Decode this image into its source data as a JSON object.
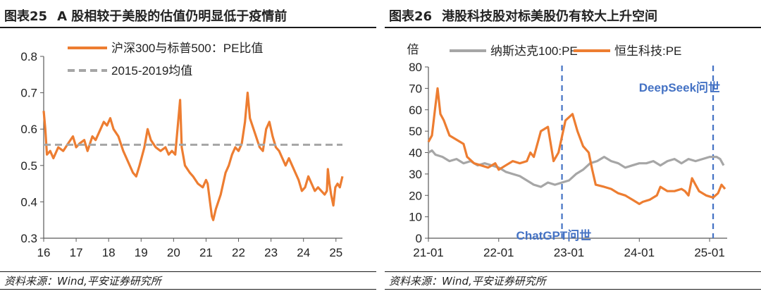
{
  "figures": [
    {
      "label": "图表25",
      "title": "A 股相较于美股的估值仍明显低于疫情前",
      "source": "资料来源：Wind,平安证券研究所"
    },
    {
      "label": "图表26",
      "title": "港股科技股对标美股仍有较大上升空间",
      "source": "资料来源：Wind,平安证券研究所"
    }
  ],
  "chart_data": [
    {
      "type": "line",
      "xlabel": "",
      "ylabel": "",
      "xlim": [
        2016.0,
        2025.2
      ],
      "ylim": [
        0.3,
        0.8
      ],
      "yticks": [
        "0.3",
        "0.4",
        "0.5",
        "0.6",
        "0.7",
        "0.8"
      ],
      "xticks": [
        {
          "label": "16",
          "x": 2016
        },
        {
          "label": "17",
          "x": 2017
        },
        {
          "label": "18",
          "x": 2018
        },
        {
          "label": "19",
          "x": 2019
        },
        {
          "label": "20",
          "x": 2020
        },
        {
          "label": "21",
          "x": 2021
        },
        {
          "label": "22",
          "x": 2022
        },
        {
          "label": "23",
          "x": 2023
        },
        {
          "label": "24",
          "x": 2024
        },
        {
          "label": "25",
          "x": 2025
        }
      ],
      "legend_position": "top-left",
      "series": [
        {
          "name": "沪深300与标普500：PE比值",
          "color": "#ED7D31",
          "style": "solid",
          "points": [
            [
              2016.0,
              0.65
            ],
            [
              2016.05,
              0.6
            ],
            [
              2016.1,
              0.53
            ],
            [
              2016.2,
              0.54
            ],
            [
              2016.3,
              0.52
            ],
            [
              2016.45,
              0.55
            ],
            [
              2016.6,
              0.54
            ],
            [
              2016.75,
              0.56
            ],
            [
              2016.9,
              0.58
            ],
            [
              2017.0,
              0.55
            ],
            [
              2017.1,
              0.56
            ],
            [
              2017.25,
              0.57
            ],
            [
              2017.35,
              0.54
            ],
            [
              2017.5,
              0.58
            ],
            [
              2017.6,
              0.57
            ],
            [
              2017.75,
              0.6
            ],
            [
              2017.85,
              0.62
            ],
            [
              2017.95,
              0.61
            ],
            [
              2018.05,
              0.63
            ],
            [
              2018.15,
              0.6
            ],
            [
              2018.3,
              0.58
            ],
            [
              2018.45,
              0.54
            ],
            [
              2018.6,
              0.51
            ],
            [
              2018.75,
              0.48
            ],
            [
              2018.85,
              0.47
            ],
            [
              2018.95,
              0.5
            ],
            [
              2019.1,
              0.55
            ],
            [
              2019.2,
              0.6
            ],
            [
              2019.3,
              0.57
            ],
            [
              2019.45,
              0.55
            ],
            [
              2019.6,
              0.54
            ],
            [
              2019.75,
              0.55
            ],
            [
              2019.85,
              0.53
            ],
            [
              2019.95,
              0.54
            ],
            [
              2020.05,
              0.53
            ],
            [
              2020.15,
              0.63
            ],
            [
              2020.2,
              0.68
            ],
            [
              2020.25,
              0.55
            ],
            [
              2020.35,
              0.5
            ],
            [
              2020.5,
              0.48
            ],
            [
              2020.6,
              0.47
            ],
            [
              2020.75,
              0.45
            ],
            [
              2020.9,
              0.44
            ],
            [
              2021.0,
              0.46
            ],
            [
              2021.05,
              0.45
            ],
            [
              2021.12,
              0.4
            ],
            [
              2021.18,
              0.36
            ],
            [
              2021.22,
              0.35
            ],
            [
              2021.3,
              0.38
            ],
            [
              2021.45,
              0.42
            ],
            [
              2021.6,
              0.48
            ],
            [
              2021.7,
              0.5
            ],
            [
              2021.8,
              0.53
            ],
            [
              2021.9,
              0.55
            ],
            [
              2022.0,
              0.54
            ],
            [
              2022.1,
              0.56
            ],
            [
              2022.2,
              0.62
            ],
            [
              2022.28,
              0.7
            ],
            [
              2022.35,
              0.63
            ],
            [
              2022.5,
              0.59
            ],
            [
              2022.65,
              0.55
            ],
            [
              2022.75,
              0.54
            ],
            [
              2022.85,
              0.6
            ],
            [
              2022.95,
              0.62
            ],
            [
              2023.05,
              0.58
            ],
            [
              2023.15,
              0.55
            ],
            [
              2023.25,
              0.54
            ],
            [
              2023.35,
              0.52
            ],
            [
              2023.45,
              0.5
            ],
            [
              2023.55,
              0.52
            ],
            [
              2023.65,
              0.5
            ],
            [
              2023.75,
              0.48
            ],
            [
              2023.85,
              0.46
            ],
            [
              2023.95,
              0.43
            ],
            [
              2024.05,
              0.44
            ],
            [
              2024.15,
              0.47
            ],
            [
              2024.25,
              0.45
            ],
            [
              2024.35,
              0.43
            ],
            [
              2024.45,
              0.44
            ],
            [
              2024.55,
              0.43
            ],
            [
              2024.65,
              0.42
            ],
            [
              2024.72,
              0.43
            ],
            [
              2024.75,
              0.49
            ],
            [
              2024.8,
              0.45
            ],
            [
              2024.85,
              0.42
            ],
            [
              2024.92,
              0.39
            ],
            [
              2024.98,
              0.44
            ],
            [
              2025.05,
              0.45
            ],
            [
              2025.12,
              0.44
            ],
            [
              2025.2,
              0.47
            ]
          ]
        },
        {
          "name": "2015-2019均值",
          "color": "#A6A6A6",
          "style": "dashed",
          "points": [
            [
              2016.0,
              0.557
            ],
            [
              2025.2,
              0.557
            ]
          ]
        }
      ]
    },
    {
      "type": "line",
      "xlabel": "",
      "ylabel": "倍",
      "xlim": [
        2021.0,
        2025.25
      ],
      "ylim": [
        0,
        80
      ],
      "yticks": [
        "0",
        "10",
        "20",
        "30",
        "40",
        "50",
        "60",
        "70",
        "80"
      ],
      "xticks": [
        {
          "label": "21-01",
          "x": 2021.0
        },
        {
          "label": "22-01",
          "x": 2022.0
        },
        {
          "label": "23-01",
          "x": 2023.0
        },
        {
          "label": "24-01",
          "x": 2024.0
        },
        {
          "label": "25-01",
          "x": 2025.0
        }
      ],
      "legend_position": "top",
      "series": [
        {
          "name": "纳斯达克100:PE",
          "color": "#A6A6A6",
          "style": "solid",
          "points": [
            [
              2021.0,
              40
            ],
            [
              2021.05,
              41
            ],
            [
              2021.1,
              39
            ],
            [
              2021.2,
              38
            ],
            [
              2021.3,
              36
            ],
            [
              2021.4,
              37
            ],
            [
              2021.5,
              35
            ],
            [
              2021.6,
              36
            ],
            [
              2021.7,
              34
            ],
            [
              2021.8,
              35
            ],
            [
              2021.9,
              34
            ],
            [
              2022.0,
              33
            ],
            [
              2022.1,
              31
            ],
            [
              2022.2,
              30
            ],
            [
              2022.3,
              29
            ],
            [
              2022.4,
              27
            ],
            [
              2022.5,
              25
            ],
            [
              2022.6,
              24
            ],
            [
              2022.7,
              26
            ],
            [
              2022.8,
              25
            ],
            [
              2022.9,
              26
            ],
            [
              2023.0,
              27
            ],
            [
              2023.1,
              30
            ],
            [
              2023.2,
              32
            ],
            [
              2023.3,
              35
            ],
            [
              2023.4,
              36
            ],
            [
              2023.5,
              38
            ],
            [
              2023.6,
              36
            ],
            [
              2023.7,
              35
            ],
            [
              2023.8,
              33
            ],
            [
              2023.9,
              34
            ],
            [
              2024.0,
              35
            ],
            [
              2024.1,
              35
            ],
            [
              2024.2,
              36
            ],
            [
              2024.3,
              34
            ],
            [
              2024.4,
              36
            ],
            [
              2024.5,
              37
            ],
            [
              2024.6,
              35
            ],
            [
              2024.7,
              37
            ],
            [
              2024.8,
              36
            ],
            [
              2024.9,
              37
            ],
            [
              2025.0,
              38
            ],
            [
              2025.1,
              38
            ],
            [
              2025.15,
              37
            ],
            [
              2025.2,
              34
            ]
          ]
        },
        {
          "name": "恒生科技:PE",
          "color": "#ED7D31",
          "style": "solid",
          "points": [
            [
              2021.0,
              45
            ],
            [
              2021.05,
              48
            ],
            [
              2021.1,
              62
            ],
            [
              2021.13,
              70
            ],
            [
              2021.17,
              58
            ],
            [
              2021.22,
              55
            ],
            [
              2021.3,
              48
            ],
            [
              2021.4,
              46
            ],
            [
              2021.5,
              44
            ],
            [
              2021.55,
              38
            ],
            [
              2021.65,
              35
            ],
            [
              2021.75,
              34
            ],
            [
              2021.85,
              33
            ],
            [
              2021.95,
              35
            ],
            [
              2022.0,
              32
            ],
            [
              2022.1,
              34
            ],
            [
              2022.2,
              36
            ],
            [
              2022.3,
              35
            ],
            [
              2022.4,
              36
            ],
            [
              2022.45,
              40
            ],
            [
              2022.5,
              38
            ],
            [
              2022.6,
              50
            ],
            [
              2022.7,
              52
            ],
            [
              2022.78,
              36
            ],
            [
              2022.85,
              40
            ],
            [
              2022.95,
              55
            ],
            [
              2023.05,
              58
            ],
            [
              2023.12,
              50
            ],
            [
              2023.2,
              43
            ],
            [
              2023.28,
              40
            ],
            [
              2023.33,
              32
            ],
            [
              2023.38,
              25
            ],
            [
              2023.5,
              24
            ],
            [
              2023.6,
              23
            ],
            [
              2023.7,
              21
            ],
            [
              2023.8,
              20
            ],
            [
              2023.9,
              18
            ],
            [
              2024.0,
              16
            ],
            [
              2024.05,
              17
            ],
            [
              2024.15,
              18
            ],
            [
              2024.25,
              20
            ],
            [
              2024.3,
              24
            ],
            [
              2024.4,
              22
            ],
            [
              2024.5,
              22
            ],
            [
              2024.6,
              23
            ],
            [
              2024.65,
              22
            ],
            [
              2024.7,
              20
            ],
            [
              2024.75,
              28
            ],
            [
              2024.8,
              25
            ],
            [
              2024.85,
              22
            ],
            [
              2024.95,
              20
            ],
            [
              2025.05,
              19
            ],
            [
              2025.12,
              21
            ],
            [
              2025.17,
              25
            ],
            [
              2025.22,
              23
            ]
          ]
        }
      ],
      "annotations": [
        {
          "text": "ChatGPT问世",
          "x": 2022.9,
          "color": "#4472C4"
        },
        {
          "text": "DeepSeek问世",
          "x": 2025.05,
          "color": "#4472C4"
        }
      ]
    }
  ]
}
